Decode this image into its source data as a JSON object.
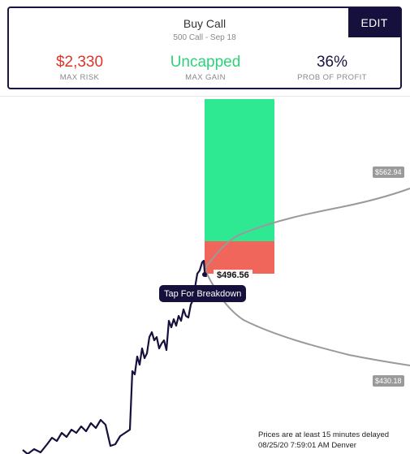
{
  "trade": {
    "title": "Buy Call",
    "subtitle": "500 Call - Sep 18",
    "edit_label": "EDIT"
  },
  "stats": {
    "max_risk": {
      "value": "$2,330",
      "label": "MAX RISK",
      "color": "#e0342b"
    },
    "max_gain": {
      "value": "Uncapped",
      "label": "MAX GAIN",
      "color": "#2fd27a"
    },
    "prob_profit": {
      "value": "36%",
      "label": "PROB OF PROFIT",
      "color": "#1b1340"
    }
  },
  "chart": {
    "current_price_label": "$496.56",
    "breakdown_label": "Tap For Breakdown",
    "upper_range_label": "$562.94",
    "lower_range_label": "$430.18",
    "colors": {
      "price_line": "#16103d",
      "profit_zone": "#2ee892",
      "loss_zone": "#f0665a",
      "range_line": "#9a9a9a"
    }
  },
  "footer": {
    "delay_notice": "Prices are at least 15 minutes delayed",
    "timestamp": "08/25/20 7:59:01 AM Denver"
  }
}
